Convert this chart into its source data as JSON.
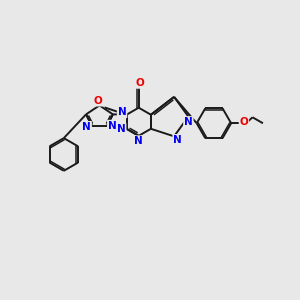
{
  "background_color": "#e8e8e8",
  "bond_color": "#1a1a1a",
  "N_color": "#0000ee",
  "O_color": "#ee0000",
  "lw": 1.4,
  "lw_inner": 1.1,
  "figsize": [
    3.0,
    3.0
  ],
  "dpi": 100,
  "xlim": [
    0,
    10
  ],
  "ylim": [
    0,
    10
  ]
}
